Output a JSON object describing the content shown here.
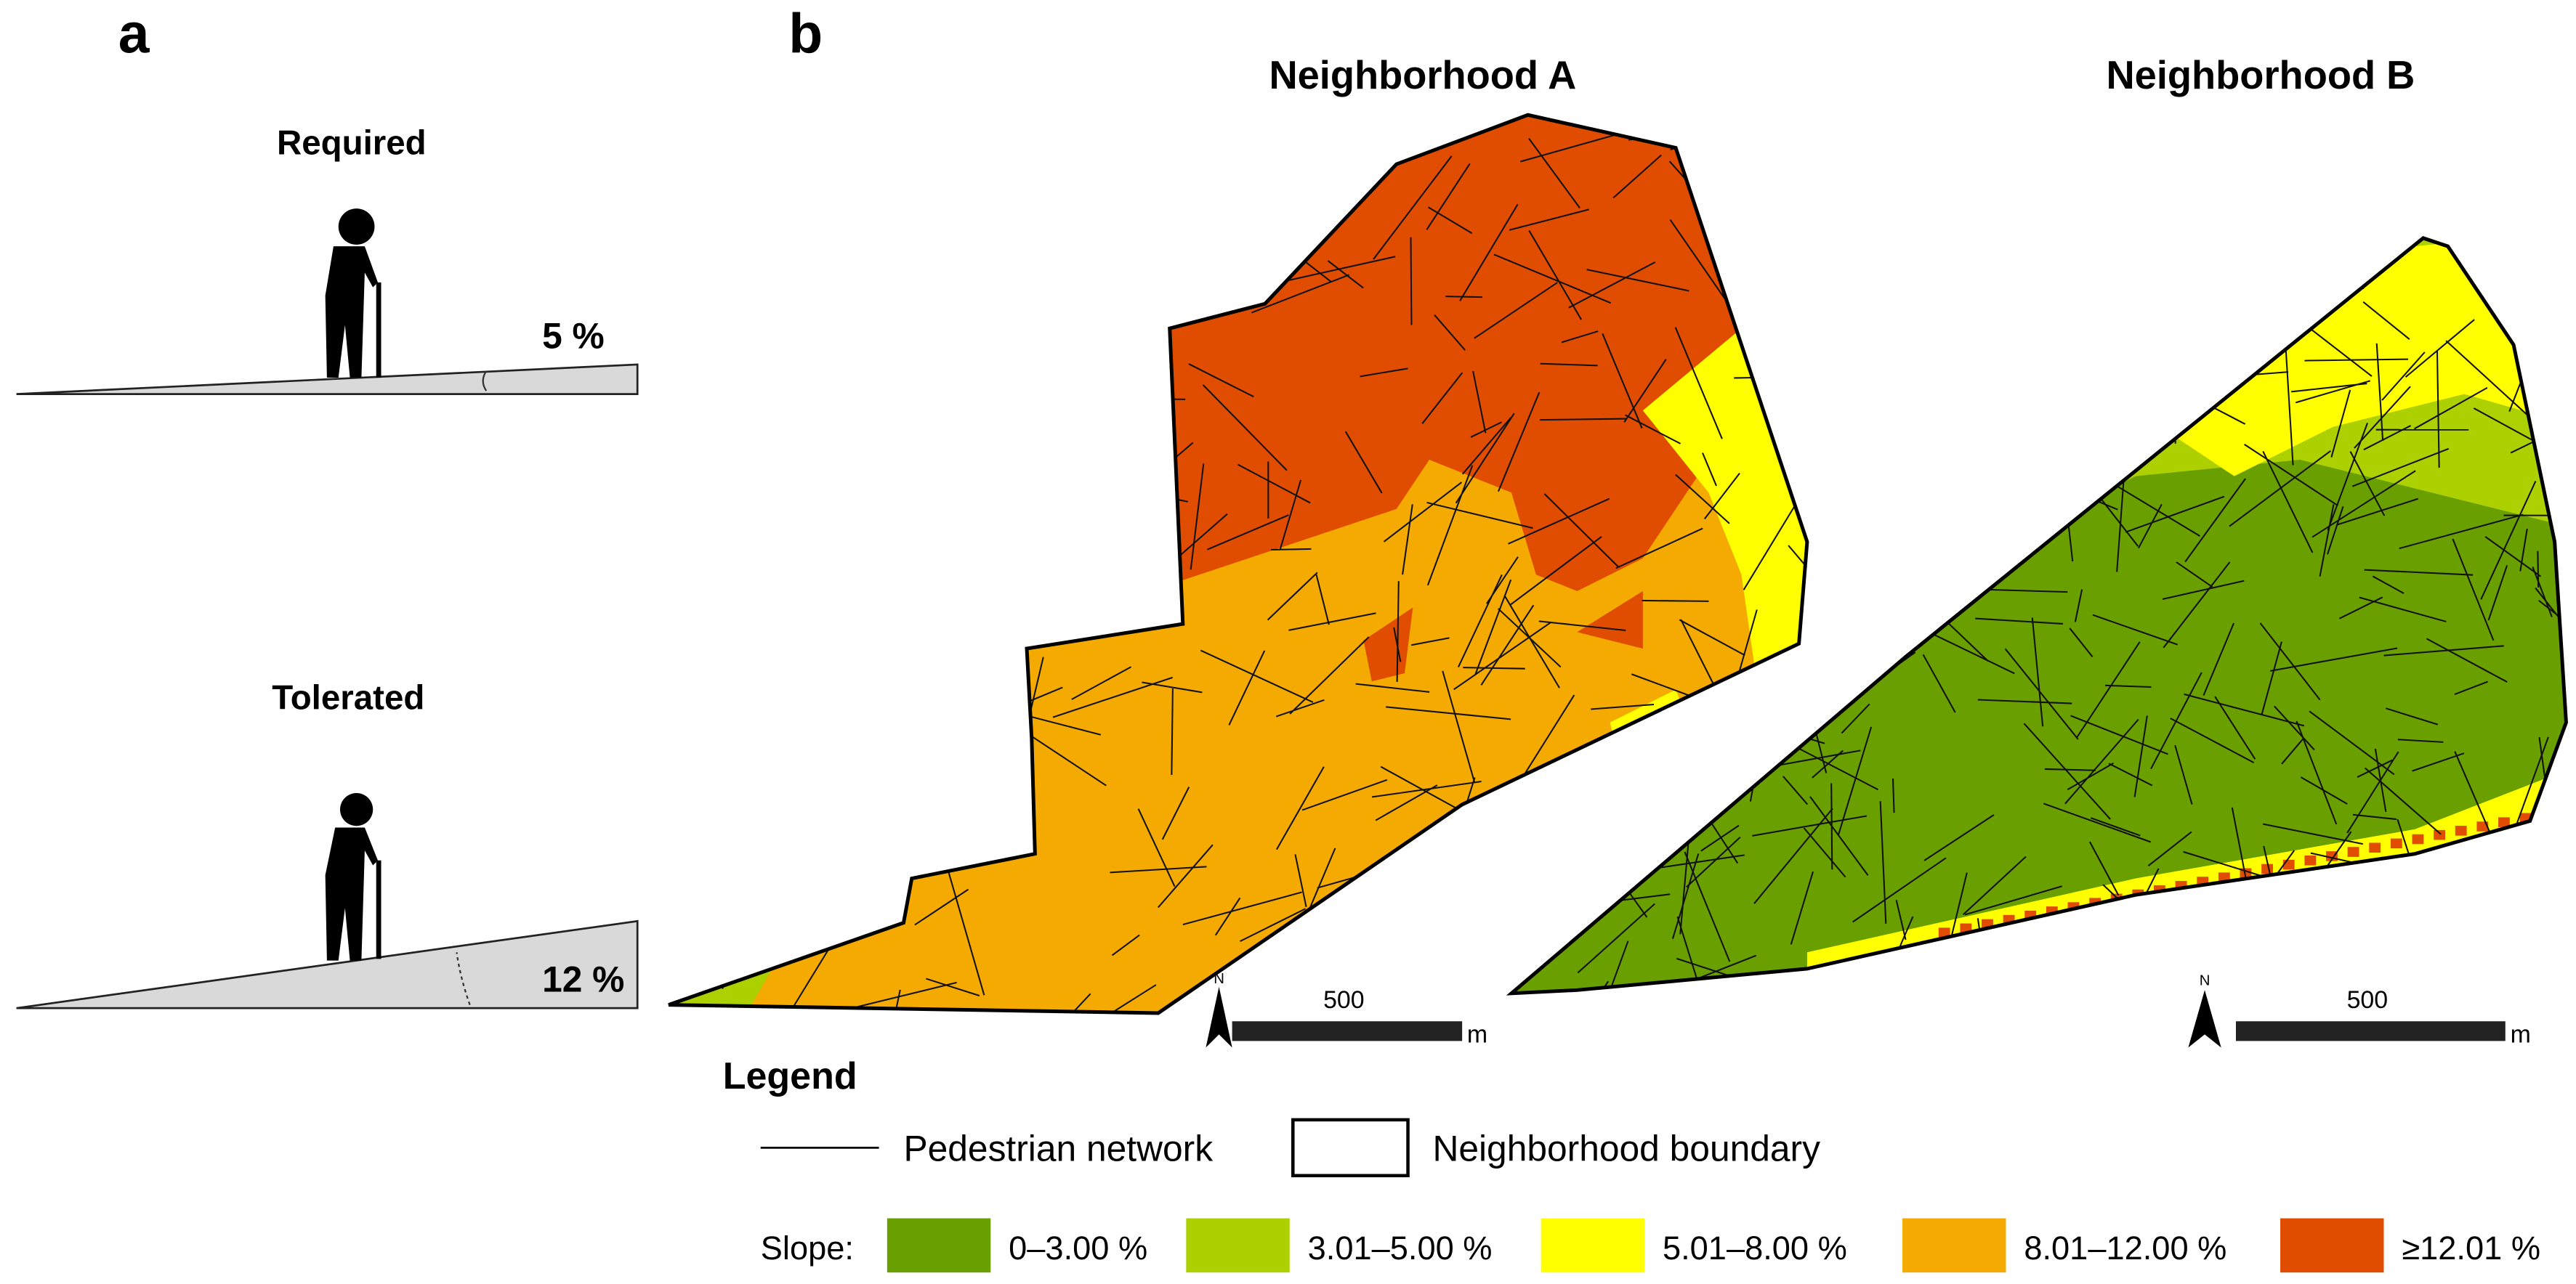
{
  "panel_a": {
    "label": "a",
    "required": {
      "title": "Required",
      "slope": "5 %"
    },
    "tolerated": {
      "title": "Tolerated",
      "slope": "12 %"
    }
  },
  "panel_b": {
    "label": "b",
    "maps": [
      {
        "title": "Neighborhood A",
        "scale": {
          "distance": "500",
          "unit": "m",
          "north": "N"
        }
      },
      {
        "title": "Neighborhood B",
        "scale": {
          "distance": "500",
          "unit": "m",
          "north": "N"
        }
      }
    ]
  },
  "legend": {
    "title": "Legend",
    "network": "Pedestrian network",
    "boundary": "Neighborhood boundary",
    "slope_label": "Slope:",
    "classes": [
      {
        "label": "0–3.00 %",
        "color": "#6a9f00"
      },
      {
        "label": "3.01–5.00 %",
        "color": "#acd000"
      },
      {
        "label": "5.01–8.00 %",
        "color": "#ffff00"
      },
      {
        "label": "8.01–12.00 %",
        "color": "#f4aa00"
      },
      {
        "label": "≥12.01 %",
        "color": "#e04c00"
      }
    ]
  }
}
